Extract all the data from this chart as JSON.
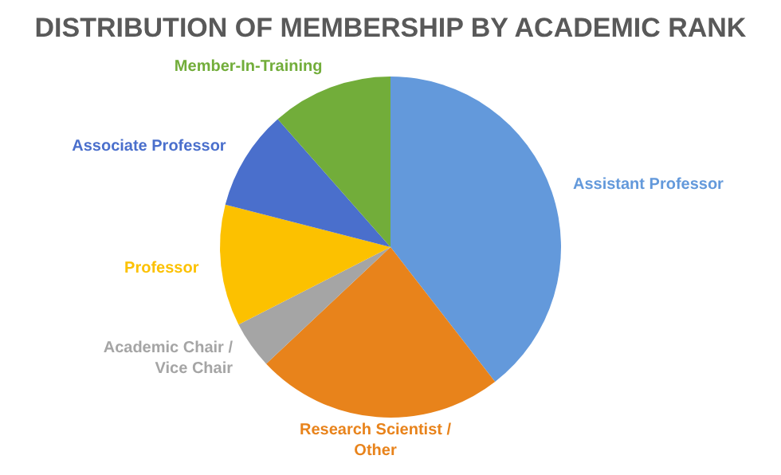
{
  "chart_data": {
    "type": "pie",
    "title": "DISTRIBUTION OF MEMBERSHIP BY ACADEMIC RANK",
    "categories": [
      "Assistant Professor",
      "Research Scientist / Other",
      "Academic Chair / Vice Chair",
      "Professor",
      "Associate Professor",
      "Member-In-Training"
    ],
    "values": [
      39.5,
      23.5,
      4.5,
      11.5,
      9.5,
      11.5
    ],
    "colors": [
      "#6399db",
      "#e8831b",
      "#a5a5a5",
      "#fcc100",
      "#4a6fcc",
      "#72ad3a"
    ],
    "legend": false
  }
}
